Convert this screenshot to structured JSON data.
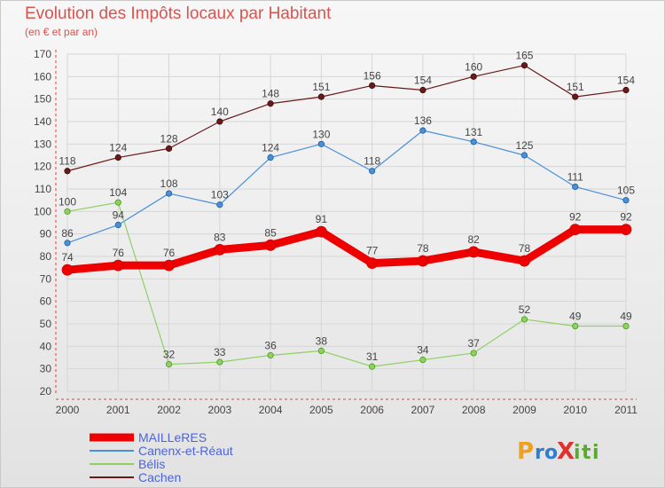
{
  "chart_data": {
    "type": "line",
    "title": "Evolution des Impôts locaux par Habitant",
    "subtitle": "(en € et par an)",
    "x": [
      "2000",
      "2001",
      "2002",
      "2003",
      "2004",
      "2005",
      "2006",
      "2007",
      "2008",
      "2009",
      "2010",
      "2011"
    ],
    "ylim": [
      20,
      170
    ],
    "yticks": [
      20,
      30,
      40,
      50,
      60,
      70,
      80,
      90,
      100,
      110,
      120,
      130,
      140,
      150,
      160,
      170
    ],
    "grid": true,
    "legend_position": "bottom-left",
    "series": [
      {
        "name": "MAILLeRES",
        "color": "#ee0000",
        "values": [
          74,
          76,
          76,
          83,
          85,
          91,
          77,
          78,
          82,
          78,
          92,
          92
        ]
      },
      {
        "name": "Canenx-et-Réaut",
        "color": "#4a90d9",
        "values": [
          86,
          94,
          108,
          103,
          124,
          130,
          118,
          136,
          131,
          125,
          111,
          105
        ]
      },
      {
        "name": "Bélis",
        "color": "#8ed162",
        "values": [
          100,
          104,
          32,
          33,
          36,
          38,
          31,
          34,
          37,
          52,
          49,
          49
        ]
      },
      {
        "name": "Cachen",
        "color": "#6b1a1a",
        "values": [
          118,
          124,
          128,
          140,
          148,
          151,
          156,
          154,
          160,
          165,
          151,
          154
        ]
      }
    ]
  },
  "logo": {
    "text": "Proxiti"
  }
}
